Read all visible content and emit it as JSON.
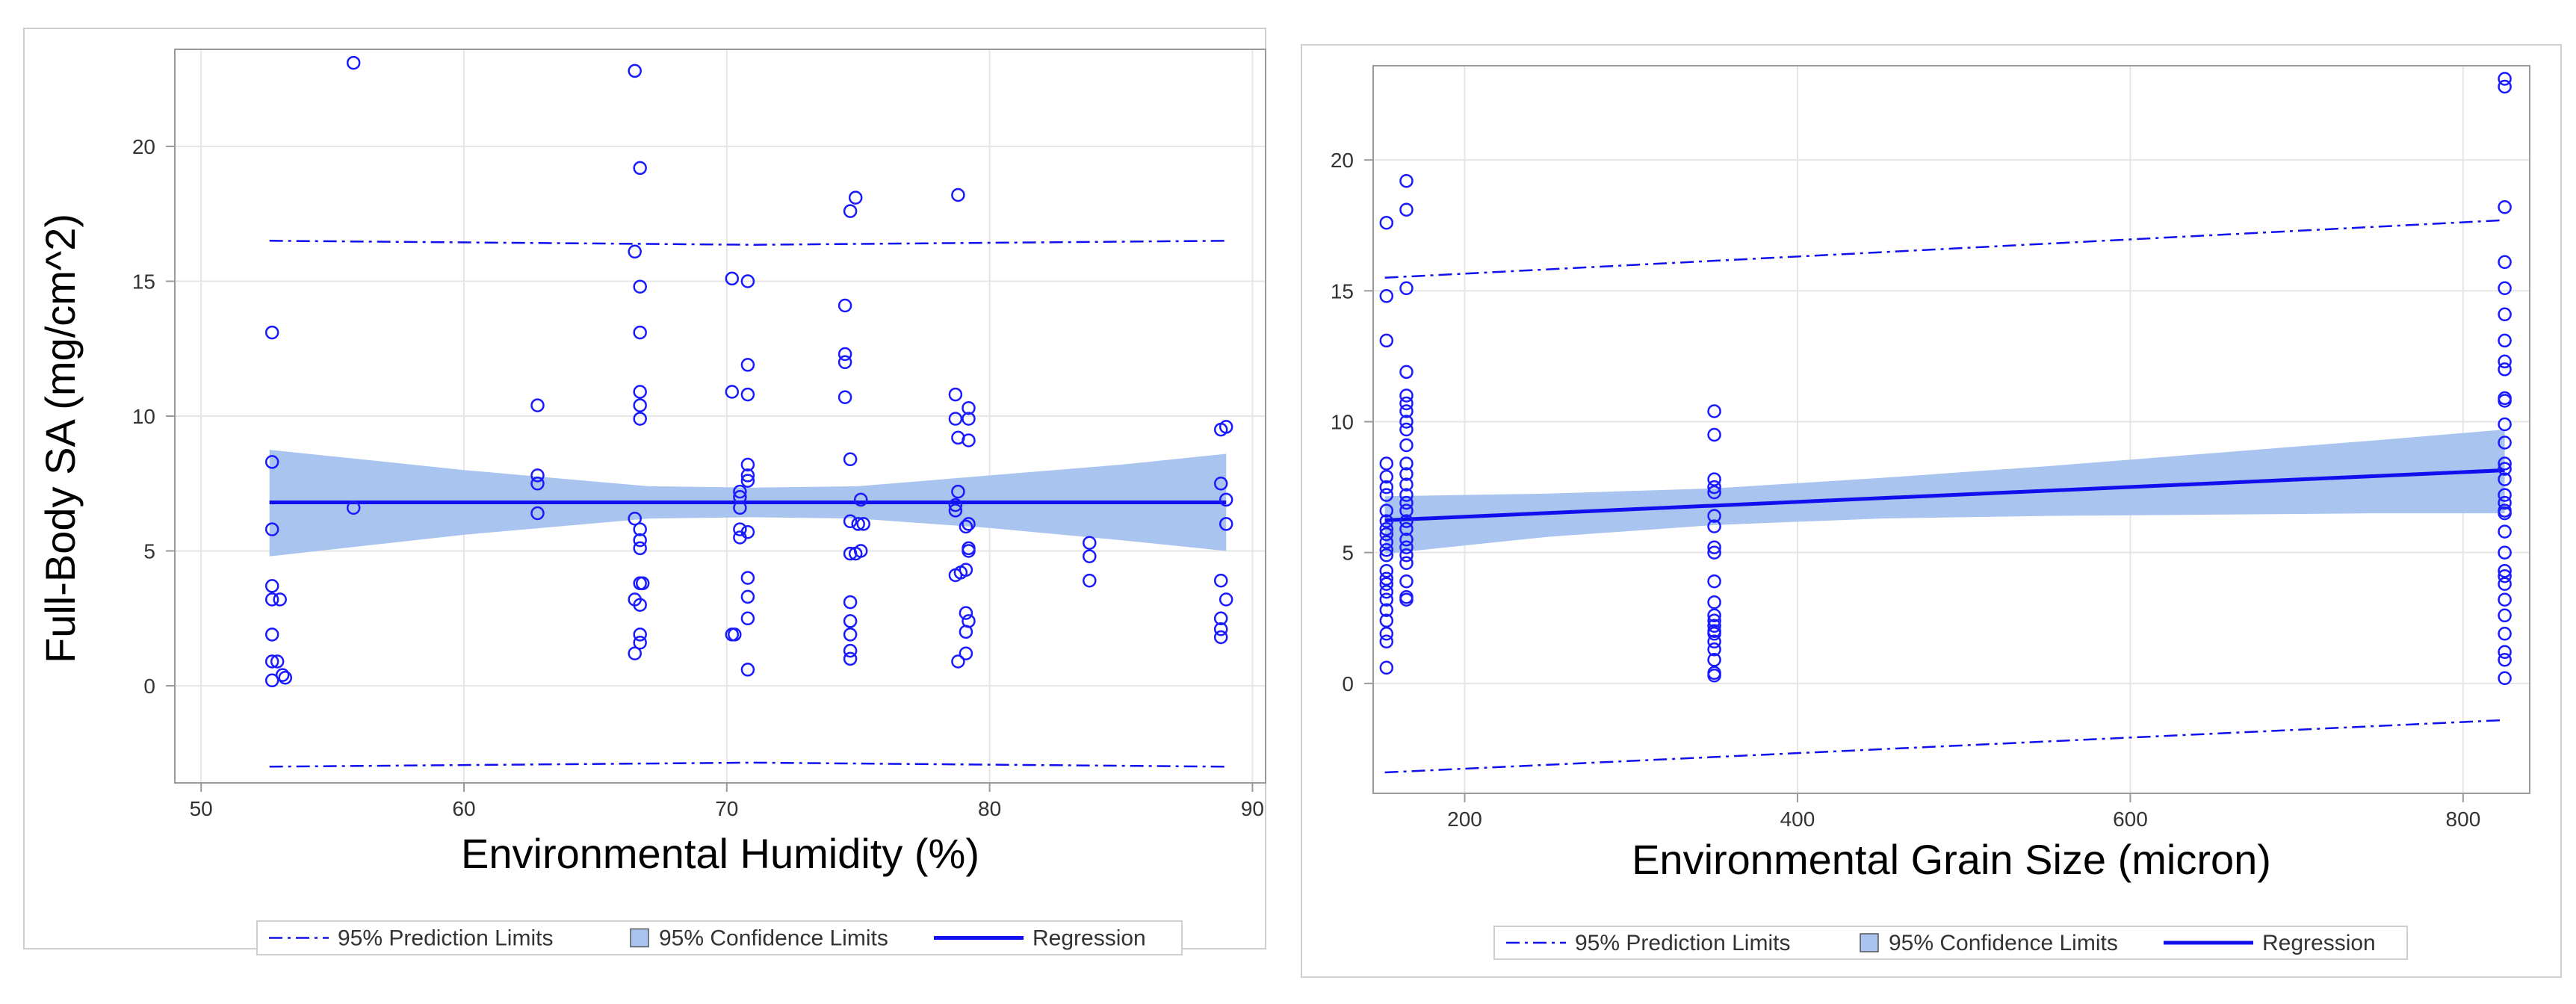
{
  "colors": {
    "line": "#1010ee",
    "band": "#a9c4ee",
    "grid": "#e6e6e6",
    "frame": "#9a9a9a",
    "outer": "#cfcfcf",
    "marker": "#1a1aff"
  },
  "legend": {
    "prediction": "95% Prediction Limits",
    "confidence": "95% Confidence Limits",
    "regression": "Regression"
  },
  "chart_data": [
    {
      "type": "scatter",
      "title": "",
      "xlabel": "Environmental Humidity (%)",
      "ylabel": "Full-Body SA (mg/cm^2)",
      "xlim": [
        49,
        90.5
      ],
      "ylim": [
        -3.6,
        23.6
      ],
      "xticks": [
        50,
        60,
        70,
        80,
        90
      ],
      "yticks": [
        0,
        5,
        10,
        15,
        20
      ],
      "regression": {
        "intercept": 6.8,
        "slope": 0.0,
        "x_range": [
          52.6,
          89
        ]
      },
      "confidence_band": {
        "x": [
          52.6,
          60,
          67,
          71,
          75,
          80,
          85,
          89
        ],
        "lower": [
          4.8,
          5.6,
          6.2,
          6.25,
          6.2,
          5.85,
          5.4,
          5.0
        ],
        "upper": [
          8.75,
          8.0,
          7.4,
          7.35,
          7.4,
          7.8,
          8.2,
          8.6
        ]
      },
      "prediction_band": {
        "x": [
          52.6,
          71,
          89
        ],
        "lower": [
          -3.0,
          -2.85,
          -3.0
        ],
        "upper": [
          16.5,
          16.35,
          16.5
        ]
      },
      "points": [
        [
          52.7,
          13.1
        ],
        [
          52.7,
          8.3
        ],
        [
          52.7,
          5.8
        ],
        [
          52.7,
          3.7
        ],
        [
          52.7,
          3.2
        ],
        [
          52.7,
          1.9
        ],
        [
          52.7,
          0.9
        ],
        [
          52.7,
          0.2
        ],
        [
          52.9,
          0.9
        ],
        [
          53.0,
          3.2
        ],
        [
          53.1,
          0.4
        ],
        [
          53.2,
          0.3
        ],
        [
          55.8,
          23.1
        ],
        [
          55.8,
          6.6
        ],
        [
          62.8,
          10.4
        ],
        [
          62.8,
          7.8
        ],
        [
          62.8,
          7.5
        ],
        [
          62.8,
          6.4
        ],
        [
          66.5,
          22.8
        ],
        [
          66.5,
          16.1
        ],
        [
          66.5,
          6.2
        ],
        [
          66.5,
          3.2
        ],
        [
          66.5,
          1.2
        ],
        [
          66.7,
          19.2
        ],
        [
          66.7,
          14.8
        ],
        [
          66.7,
          13.1
        ],
        [
          66.7,
          10.9
        ],
        [
          66.7,
          10.4
        ],
        [
          66.7,
          9.9
        ],
        [
          66.7,
          5.8
        ],
        [
          66.7,
          5.4
        ],
        [
          66.7,
          5.1
        ],
        [
          66.7,
          3.8
        ],
        [
          66.7,
          3.0
        ],
        [
          66.7,
          1.9
        ],
        [
          66.7,
          1.6
        ],
        [
          66.8,
          3.8
        ],
        [
          70.2,
          15.1
        ],
        [
          70.2,
          10.9
        ],
        [
          70.2,
          1.9
        ],
        [
          70.3,
          1.9
        ],
        [
          70.5,
          7.2
        ],
        [
          70.5,
          7.0
        ],
        [
          70.5,
          6.6
        ],
        [
          70.5,
          5.8
        ],
        [
          70.5,
          5.5
        ],
        [
          70.8,
          15.0
        ],
        [
          70.8,
          11.9
        ],
        [
          70.8,
          10.8
        ],
        [
          70.8,
          8.2
        ],
        [
          70.8,
          7.8
        ],
        [
          70.8,
          7.6
        ],
        [
          70.8,
          5.7
        ],
        [
          70.8,
          4.0
        ],
        [
          70.8,
          3.3
        ],
        [
          70.8,
          2.5
        ],
        [
          70.8,
          0.6
        ],
        [
          74.5,
          14.1
        ],
        [
          74.5,
          12.3
        ],
        [
          74.5,
          12.0
        ],
        [
          74.5,
          10.7
        ],
        [
          74.7,
          17.6
        ],
        [
          74.7,
          8.4
        ],
        [
          74.7,
          6.1
        ],
        [
          74.7,
          4.9
        ],
        [
          74.7,
          3.1
        ],
        [
          74.7,
          2.4
        ],
        [
          74.7,
          1.9
        ],
        [
          74.7,
          1.3
        ],
        [
          74.7,
          1.0
        ],
        [
          74.9,
          18.1
        ],
        [
          74.9,
          4.9
        ],
        [
          75.0,
          6.0
        ],
        [
          75.1,
          6.9
        ],
        [
          75.1,
          5.0
        ],
        [
          75.2,
          6.0
        ],
        [
          78.7,
          10.8
        ],
        [
          78.7,
          9.9
        ],
        [
          78.7,
          6.7
        ],
        [
          78.7,
          6.5
        ],
        [
          78.7,
          4.1
        ],
        [
          78.8,
          18.2
        ],
        [
          78.8,
          9.2
        ],
        [
          78.8,
          7.2
        ],
        [
          78.8,
          0.9
        ],
        [
          78.9,
          4.2
        ],
        [
          79.1,
          5.9
        ],
        [
          79.1,
          4.3
        ],
        [
          79.1,
          2.7
        ],
        [
          79.1,
          2.0
        ],
        [
          79.1,
          1.2
        ],
        [
          79.2,
          10.3
        ],
        [
          79.2,
          9.9
        ],
        [
          79.2,
          9.1
        ],
        [
          79.2,
          6.0
        ],
        [
          79.2,
          5.1
        ],
        [
          79.2,
          5.0
        ],
        [
          79.2,
          2.4
        ],
        [
          83.8,
          5.3
        ],
        [
          83.8,
          4.8
        ],
        [
          83.8,
          3.9
        ],
        [
          88.8,
          9.5
        ],
        [
          88.8,
          7.5
        ],
        [
          88.8,
          3.9
        ],
        [
          88.8,
          2.5
        ],
        [
          88.8,
          2.1
        ],
        [
          88.8,
          1.8
        ],
        [
          89.0,
          9.6
        ],
        [
          89.0,
          6.9
        ],
        [
          89.0,
          6.0
        ],
        [
          89.0,
          3.2
        ]
      ]
    },
    {
      "type": "scatter",
      "title": "",
      "xlabel": "Environmental Grain Size (micron)",
      "ylabel": "",
      "xlim": [
        145,
        840
      ],
      "ylim": [
        -4.2,
        23.6
      ],
      "xticks": [
        200,
        400,
        600,
        800
      ],
      "yticks": [
        0,
        5,
        10,
        15,
        20
      ],
      "regression": {
        "intercept": 5.8,
        "slope": 0.00284,
        "x_range": [
          152,
          825
        ]
      },
      "confidence_band": {
        "x": [
          152,
          250,
          350,
          450,
          550,
          650,
          750,
          825
        ],
        "lower": [
          4.95,
          5.6,
          6.05,
          6.3,
          6.4,
          6.45,
          6.5,
          6.5
        ],
        "upper": [
          7.15,
          7.25,
          7.45,
          7.85,
          8.3,
          8.8,
          9.3,
          9.7
        ]
      },
      "prediction_band": {
        "x": [
          152,
          825
        ],
        "lower": [
          -3.4,
          -1.4
        ],
        "upper": [
          15.5,
          17.7
        ]
      },
      "points": [
        [
          153,
          17.6
        ],
        [
          153,
          14.8
        ],
        [
          153,
          13.1
        ],
        [
          153,
          8.4
        ],
        [
          153,
          7.9
        ],
        [
          153,
          7.5
        ],
        [
          153,
          7.2
        ],
        [
          153,
          6.6
        ],
        [
          153,
          6.2
        ],
        [
          153,
          5.9
        ],
        [
          153,
          5.7
        ],
        [
          153,
          5.4
        ],
        [
          153,
          5.1
        ],
        [
          153,
          4.9
        ],
        [
          153,
          4.3
        ],
        [
          153,
          4.0
        ],
        [
          153,
          3.8
        ],
        [
          153,
          3.5
        ],
        [
          153,
          3.2
        ],
        [
          153,
          2.8
        ],
        [
          153,
          2.4
        ],
        [
          153,
          1.9
        ],
        [
          153,
          1.6
        ],
        [
          153,
          0.6
        ],
        [
          165,
          19.2
        ],
        [
          165,
          18.1
        ],
        [
          165,
          15.1
        ],
        [
          165,
          11.9
        ],
        [
          165,
          11.0
        ],
        [
          165,
          10.7
        ],
        [
          165,
          10.4
        ],
        [
          165,
          10.0
        ],
        [
          165,
          9.7
        ],
        [
          165,
          9.1
        ],
        [
          165,
          8.4
        ],
        [
          165,
          8.0
        ],
        [
          165,
          7.6
        ],
        [
          165,
          7.2
        ],
        [
          165,
          6.9
        ],
        [
          165,
          6.6
        ],
        [
          165,
          6.2
        ],
        [
          165,
          5.9
        ],
        [
          165,
          5.5
        ],
        [
          165,
          5.2
        ],
        [
          165,
          4.9
        ],
        [
          165,
          4.6
        ],
        [
          165,
          3.9
        ],
        [
          165,
          3.3
        ],
        [
          165,
          3.2
        ],
        [
          350,
          10.4
        ],
        [
          350,
          9.5
        ],
        [
          350,
          7.8
        ],
        [
          350,
          7.5
        ],
        [
          350,
          7.3
        ],
        [
          350,
          6.4
        ],
        [
          350,
          6.0
        ],
        [
          350,
          5.2
        ],
        [
          350,
          5.0
        ],
        [
          350,
          3.9
        ],
        [
          350,
          3.1
        ],
        [
          350,
          2.6
        ],
        [
          350,
          2.4
        ],
        [
          350,
          2.2
        ],
        [
          350,
          2.0
        ],
        [
          350,
          1.9
        ],
        [
          350,
          1.6
        ],
        [
          350,
          1.3
        ],
        [
          350,
          0.9
        ],
        [
          350,
          0.4
        ],
        [
          350,
          0.3
        ],
        [
          825,
          23.1
        ],
        [
          825,
          22.8
        ],
        [
          825,
          18.2
        ],
        [
          825,
          16.1
        ],
        [
          825,
          15.1
        ],
        [
          825,
          14.1
        ],
        [
          825,
          13.1
        ],
        [
          825,
          12.3
        ],
        [
          825,
          12.0
        ],
        [
          825,
          10.9
        ],
        [
          825,
          10.8
        ],
        [
          825,
          9.9
        ],
        [
          825,
          9.2
        ],
        [
          825,
          8.4
        ],
        [
          825,
          8.2
        ],
        [
          825,
          7.8
        ],
        [
          825,
          7.2
        ],
        [
          825,
          6.9
        ],
        [
          825,
          6.6
        ],
        [
          825,
          6.5
        ],
        [
          825,
          5.8
        ],
        [
          825,
          5.0
        ],
        [
          825,
          4.3
        ],
        [
          825,
          4.1
        ],
        [
          825,
          3.8
        ],
        [
          825,
          3.2
        ],
        [
          825,
          2.6
        ],
        [
          825,
          1.9
        ],
        [
          825,
          1.2
        ],
        [
          825,
          0.9
        ],
        [
          825,
          0.2
        ]
      ]
    }
  ]
}
